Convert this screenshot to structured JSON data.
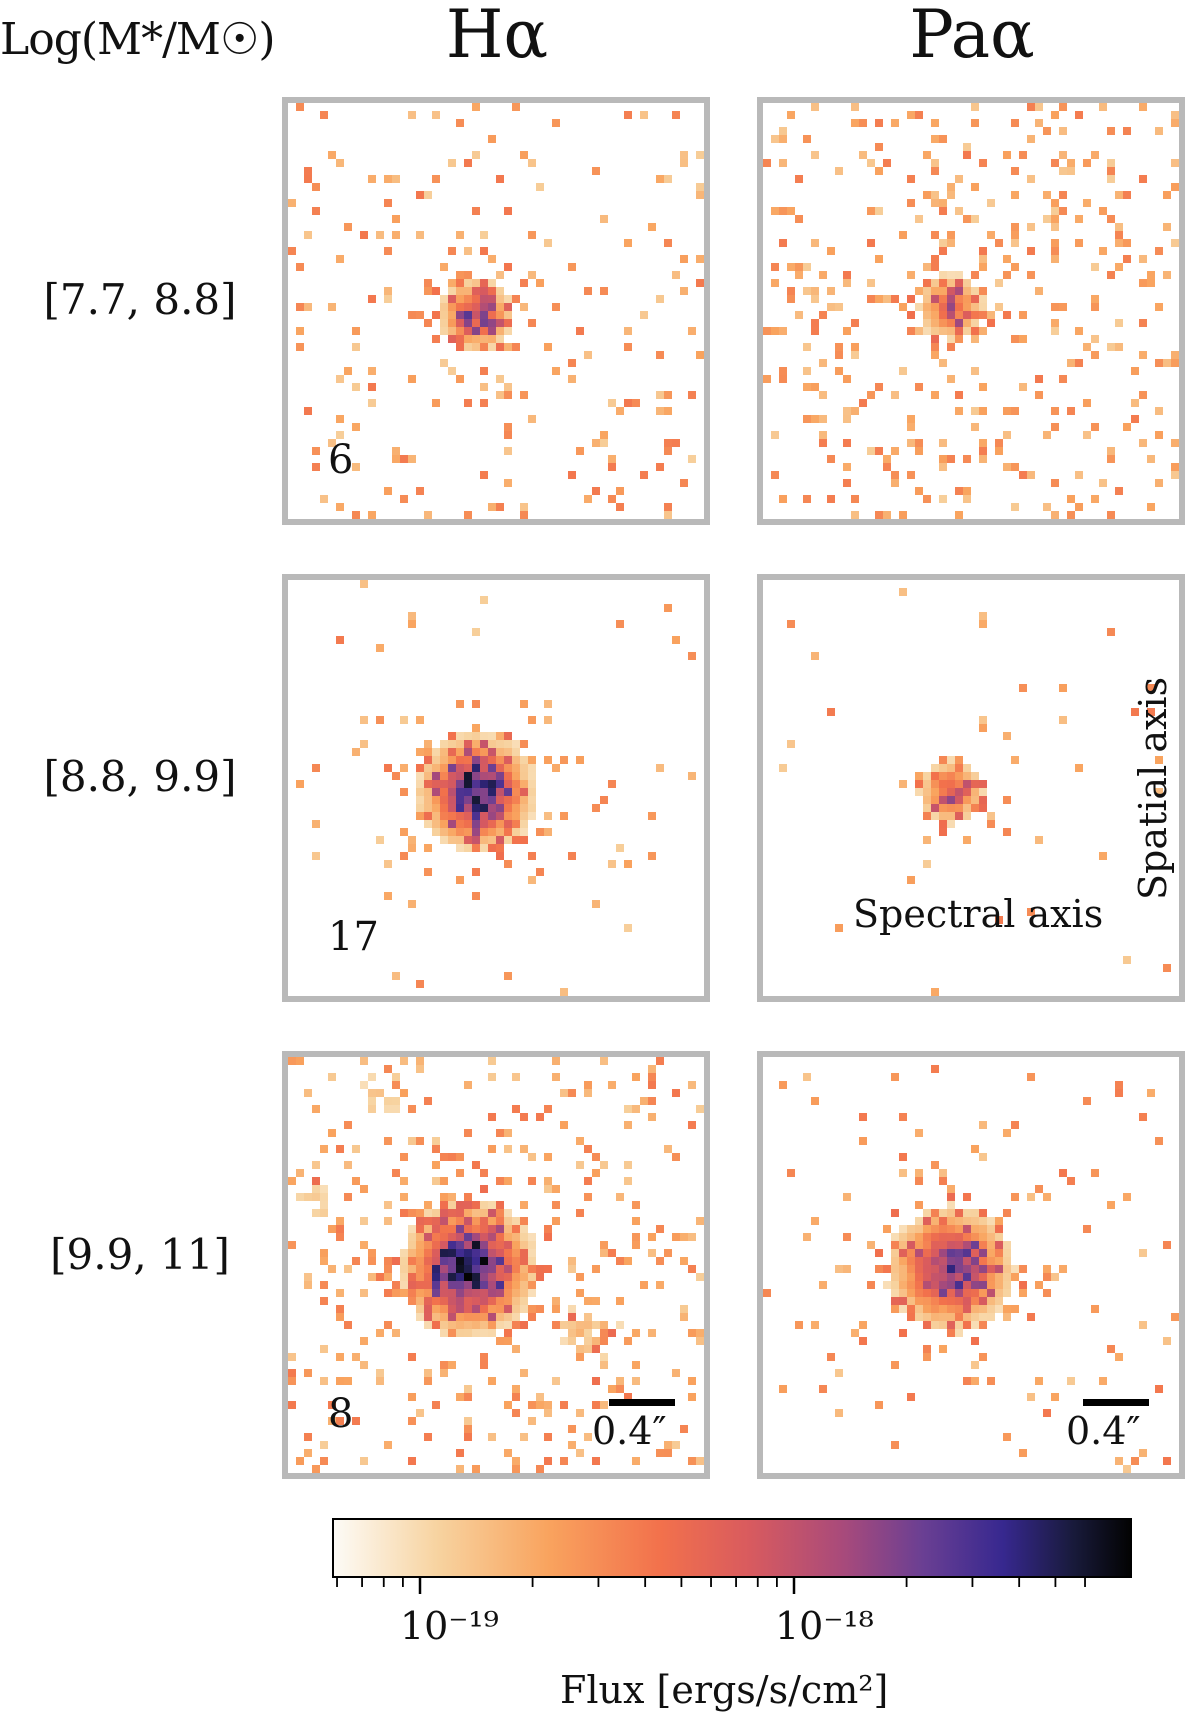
{
  "header": {
    "ylabel": "Log(M*/M☉)",
    "col_halpha": "Hα",
    "col_paalpha": "Paα"
  },
  "rows": [
    {
      "label": "[7.7, 8.8]",
      "count": "6"
    },
    {
      "label": "[8.8, 9.9]",
      "count": "17"
    },
    {
      "label": "[9.9, 11]",
      "count": "8"
    }
  ],
  "annotations": {
    "spectral_axis": "Spectral axis",
    "spatial_axis": "Spatial axis",
    "scalebar_label": "0.4″"
  },
  "colorbar": {
    "label": "Flux [ergs/s/cm²]",
    "tick_major_1": "10⁻¹⁹",
    "tick_major_2": "10⁻¹⁸",
    "colors": [
      "#fdfbf6",
      "#f7d3a0",
      "#f9a35e",
      "#f2714c",
      "#d95b5e",
      "#a84a7b",
      "#6a3f93",
      "#37288f",
      "#181a3a",
      "#030303"
    ]
  }
}
